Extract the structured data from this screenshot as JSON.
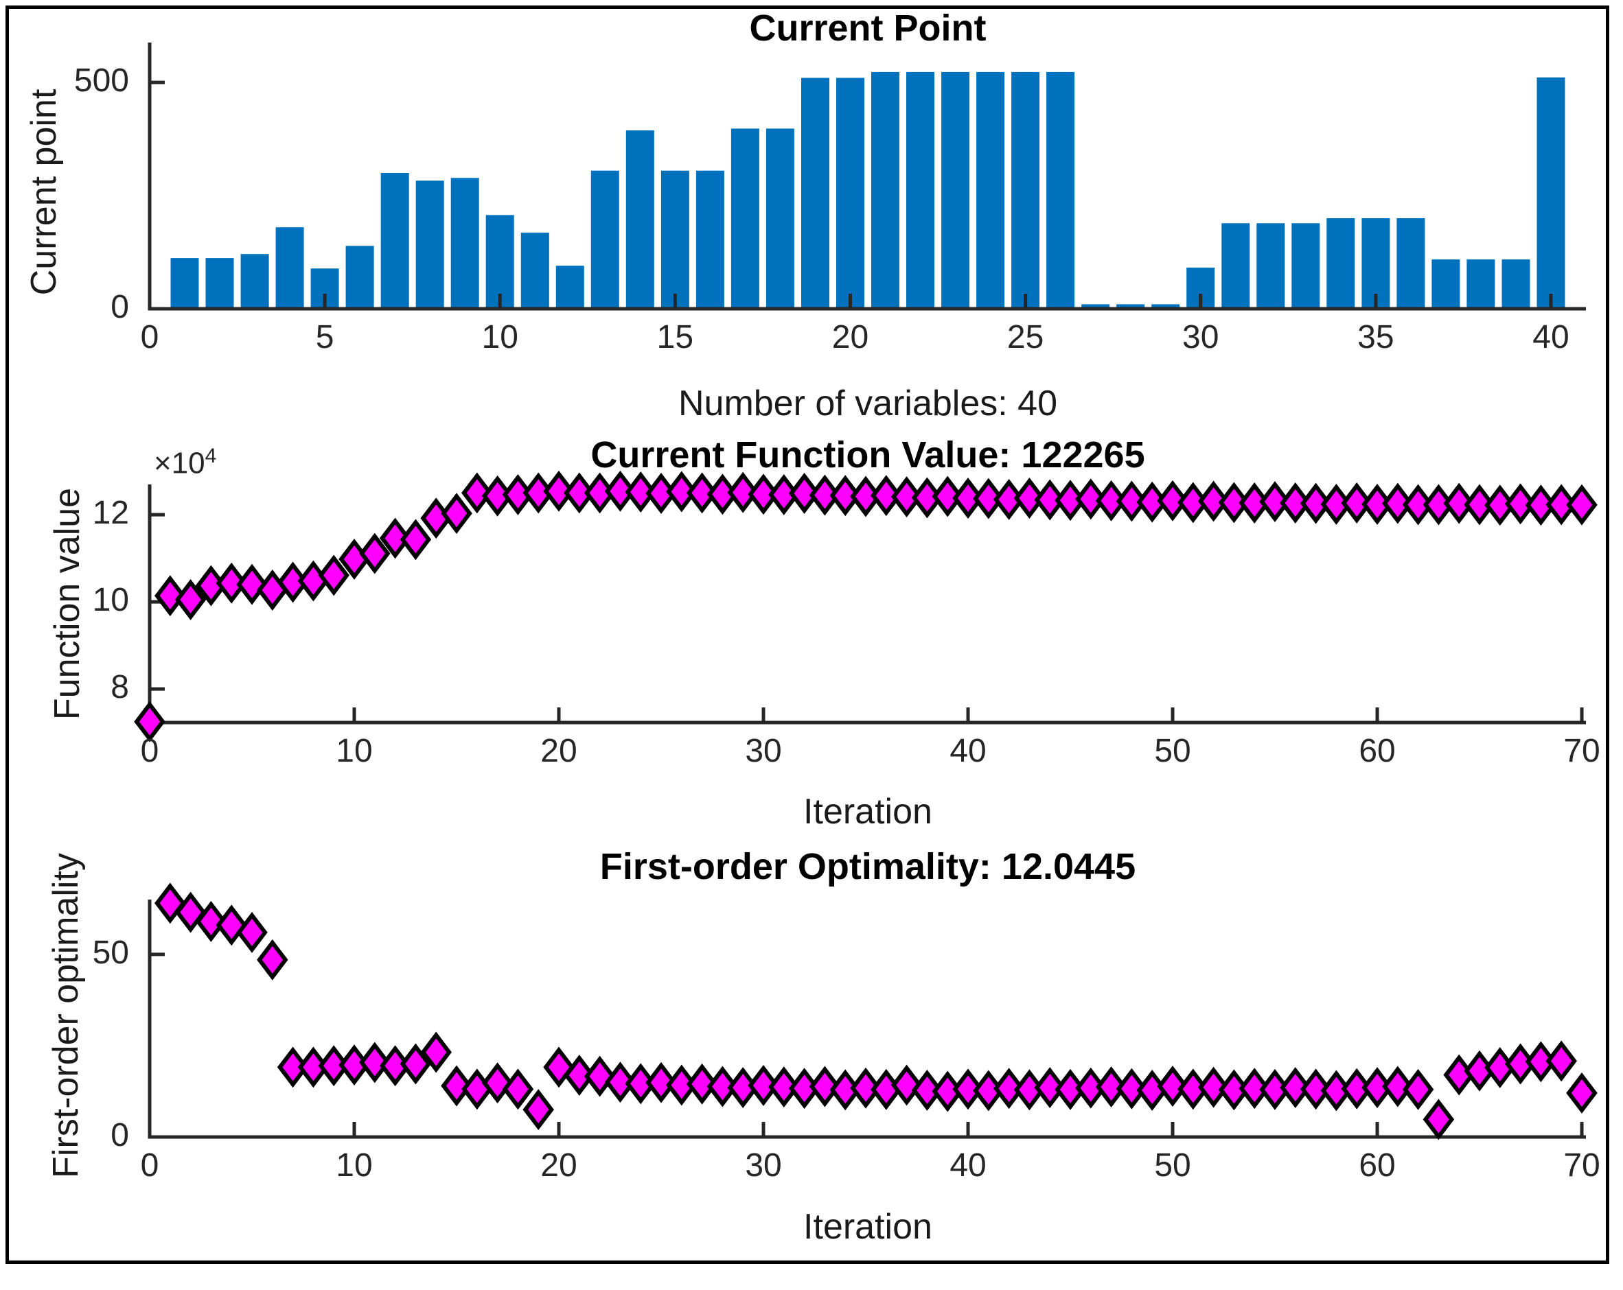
{
  "figure": {
    "background": "#ffffff",
    "border_color": "#000000"
  },
  "colors": {
    "bar": "#0072BD",
    "marker_fill": "#FF00FF",
    "marker_edge": "#000000",
    "axis": "#262626",
    "text": "#1a1a1a"
  },
  "top_chart": {
    "title": "Current Point",
    "ylabel": "Current point",
    "xlabel": "Number of variables: 40"
  },
  "middle_chart": {
    "title": "Current Function Value: 122265",
    "ylabel": "Function value",
    "xlabel": "Iteration",
    "exponent_prefix": "×10",
    "exponent": "4"
  },
  "bottom_chart": {
    "title": "First-order Optimality: 12.0445",
    "ylabel": "First-order optimality",
    "xlabel": "Iteration"
  },
  "chart_data": [
    {
      "type": "bar",
      "title": "Current Point",
      "xlabel": "Number of variables: 40",
      "ylabel": "Current point",
      "x_start": 1,
      "values": [
        112,
        112,
        121,
        180,
        89,
        139,
        300,
        283,
        289,
        207,
        168,
        95,
        305,
        394,
        305,
        305,
        398,
        398,
        510,
        510,
        523,
        523,
        523,
        523,
        523,
        523,
        10,
        10,
        10,
        91,
        189,
        189,
        189,
        200,
        200,
        200,
        109,
        109,
        109,
        511
      ],
      "xlim": [
        0,
        41
      ],
      "ylim": [
        0,
        588
      ],
      "xticks": [
        0,
        5,
        10,
        15,
        20,
        25,
        30,
        35,
        40
      ],
      "yticks": [
        0,
        500
      ],
      "bar_color": "#0072BD"
    },
    {
      "type": "scatter",
      "title": "Current Function Value: 122265",
      "xlabel": "Iteration",
      "ylabel": "Function value",
      "y_unit_exponent": 4,
      "current_function_value": 122265,
      "x_start": 0,
      "values_e4": [
        7.25,
        10.14,
        10.05,
        10.37,
        10.43,
        10.4,
        10.27,
        10.45,
        10.48,
        10.61,
        10.98,
        11.11,
        11.46,
        11.43,
        11.92,
        12.03,
        12.5,
        12.43,
        12.46,
        12.5,
        12.54,
        12.5,
        12.5,
        12.54,
        12.52,
        12.49,
        12.53,
        12.5,
        12.47,
        12.51,
        12.47,
        12.46,
        12.49,
        12.45,
        12.44,
        12.42,
        12.44,
        12.41,
        12.39,
        12.42,
        12.38,
        12.37,
        12.35,
        12.38,
        12.34,
        12.33,
        12.36,
        12.32,
        12.31,
        12.29,
        12.32,
        12.28,
        12.31,
        12.28,
        12.27,
        12.3,
        12.27,
        12.26,
        12.24,
        12.27,
        12.24,
        12.26,
        12.23,
        12.23,
        12.26,
        12.23,
        12.22,
        12.25,
        12.22,
        12.23,
        12.2265
      ],
      "xlim": [
        0,
        70.2
      ],
      "ylim_e4": [
        7.23,
        12.695
      ],
      "xticks": [
        0,
        10,
        20,
        30,
        40,
        50,
        60,
        70
      ],
      "yticks_e4": [
        8,
        10,
        12
      ],
      "marker": "diamond",
      "marker_fill": "#FF00FF",
      "marker_edge": "#000000"
    },
    {
      "type": "scatter",
      "title": "First-order Optimality: 12.0445",
      "xlabel": "Iteration",
      "ylabel": "First-order optimality",
      "current_optimality": 12.0445,
      "x_start": 1,
      "values": [
        64,
        61.5,
        59,
        58,
        56,
        48.5,
        19.1,
        19.1,
        19.5,
        19.7,
        20.4,
        19.5,
        20.0,
        23.2,
        14.0,
        13.1,
        14.8,
        13.1,
        7.5,
        19.1,
        16.9,
        16.6,
        15.0,
        14.6,
        14.9,
        14.2,
        14.5,
        13.8,
        13.5,
        14.1,
        13.7,
        13.3,
        13.8,
        12.9,
        13.4,
        13.0,
        14.2,
        12.8,
        12.5,
        13.1,
        12.7,
        13.3,
        12.9,
        13.5,
        13.0,
        13.4,
        13.7,
        13.2,
        12.8,
        13.9,
        13.1,
        13.6,
        12.9,
        13.3,
        13.0,
        13.5,
        13.1,
        12.7,
        13.2,
        13.5,
        13.8,
        13.0,
        4.8,
        17.0,
        18.1,
        19.0,
        20.0,
        20.6,
        20.8,
        12.0445
      ],
      "xlim": [
        0,
        70.2
      ],
      "ylim": [
        0,
        65
      ],
      "xticks": [
        0,
        10,
        20,
        30,
        40,
        50,
        60,
        70
      ],
      "yticks": [
        0,
        50
      ],
      "marker": "diamond",
      "marker_fill": "#FF00FF",
      "marker_edge": "#000000"
    }
  ]
}
